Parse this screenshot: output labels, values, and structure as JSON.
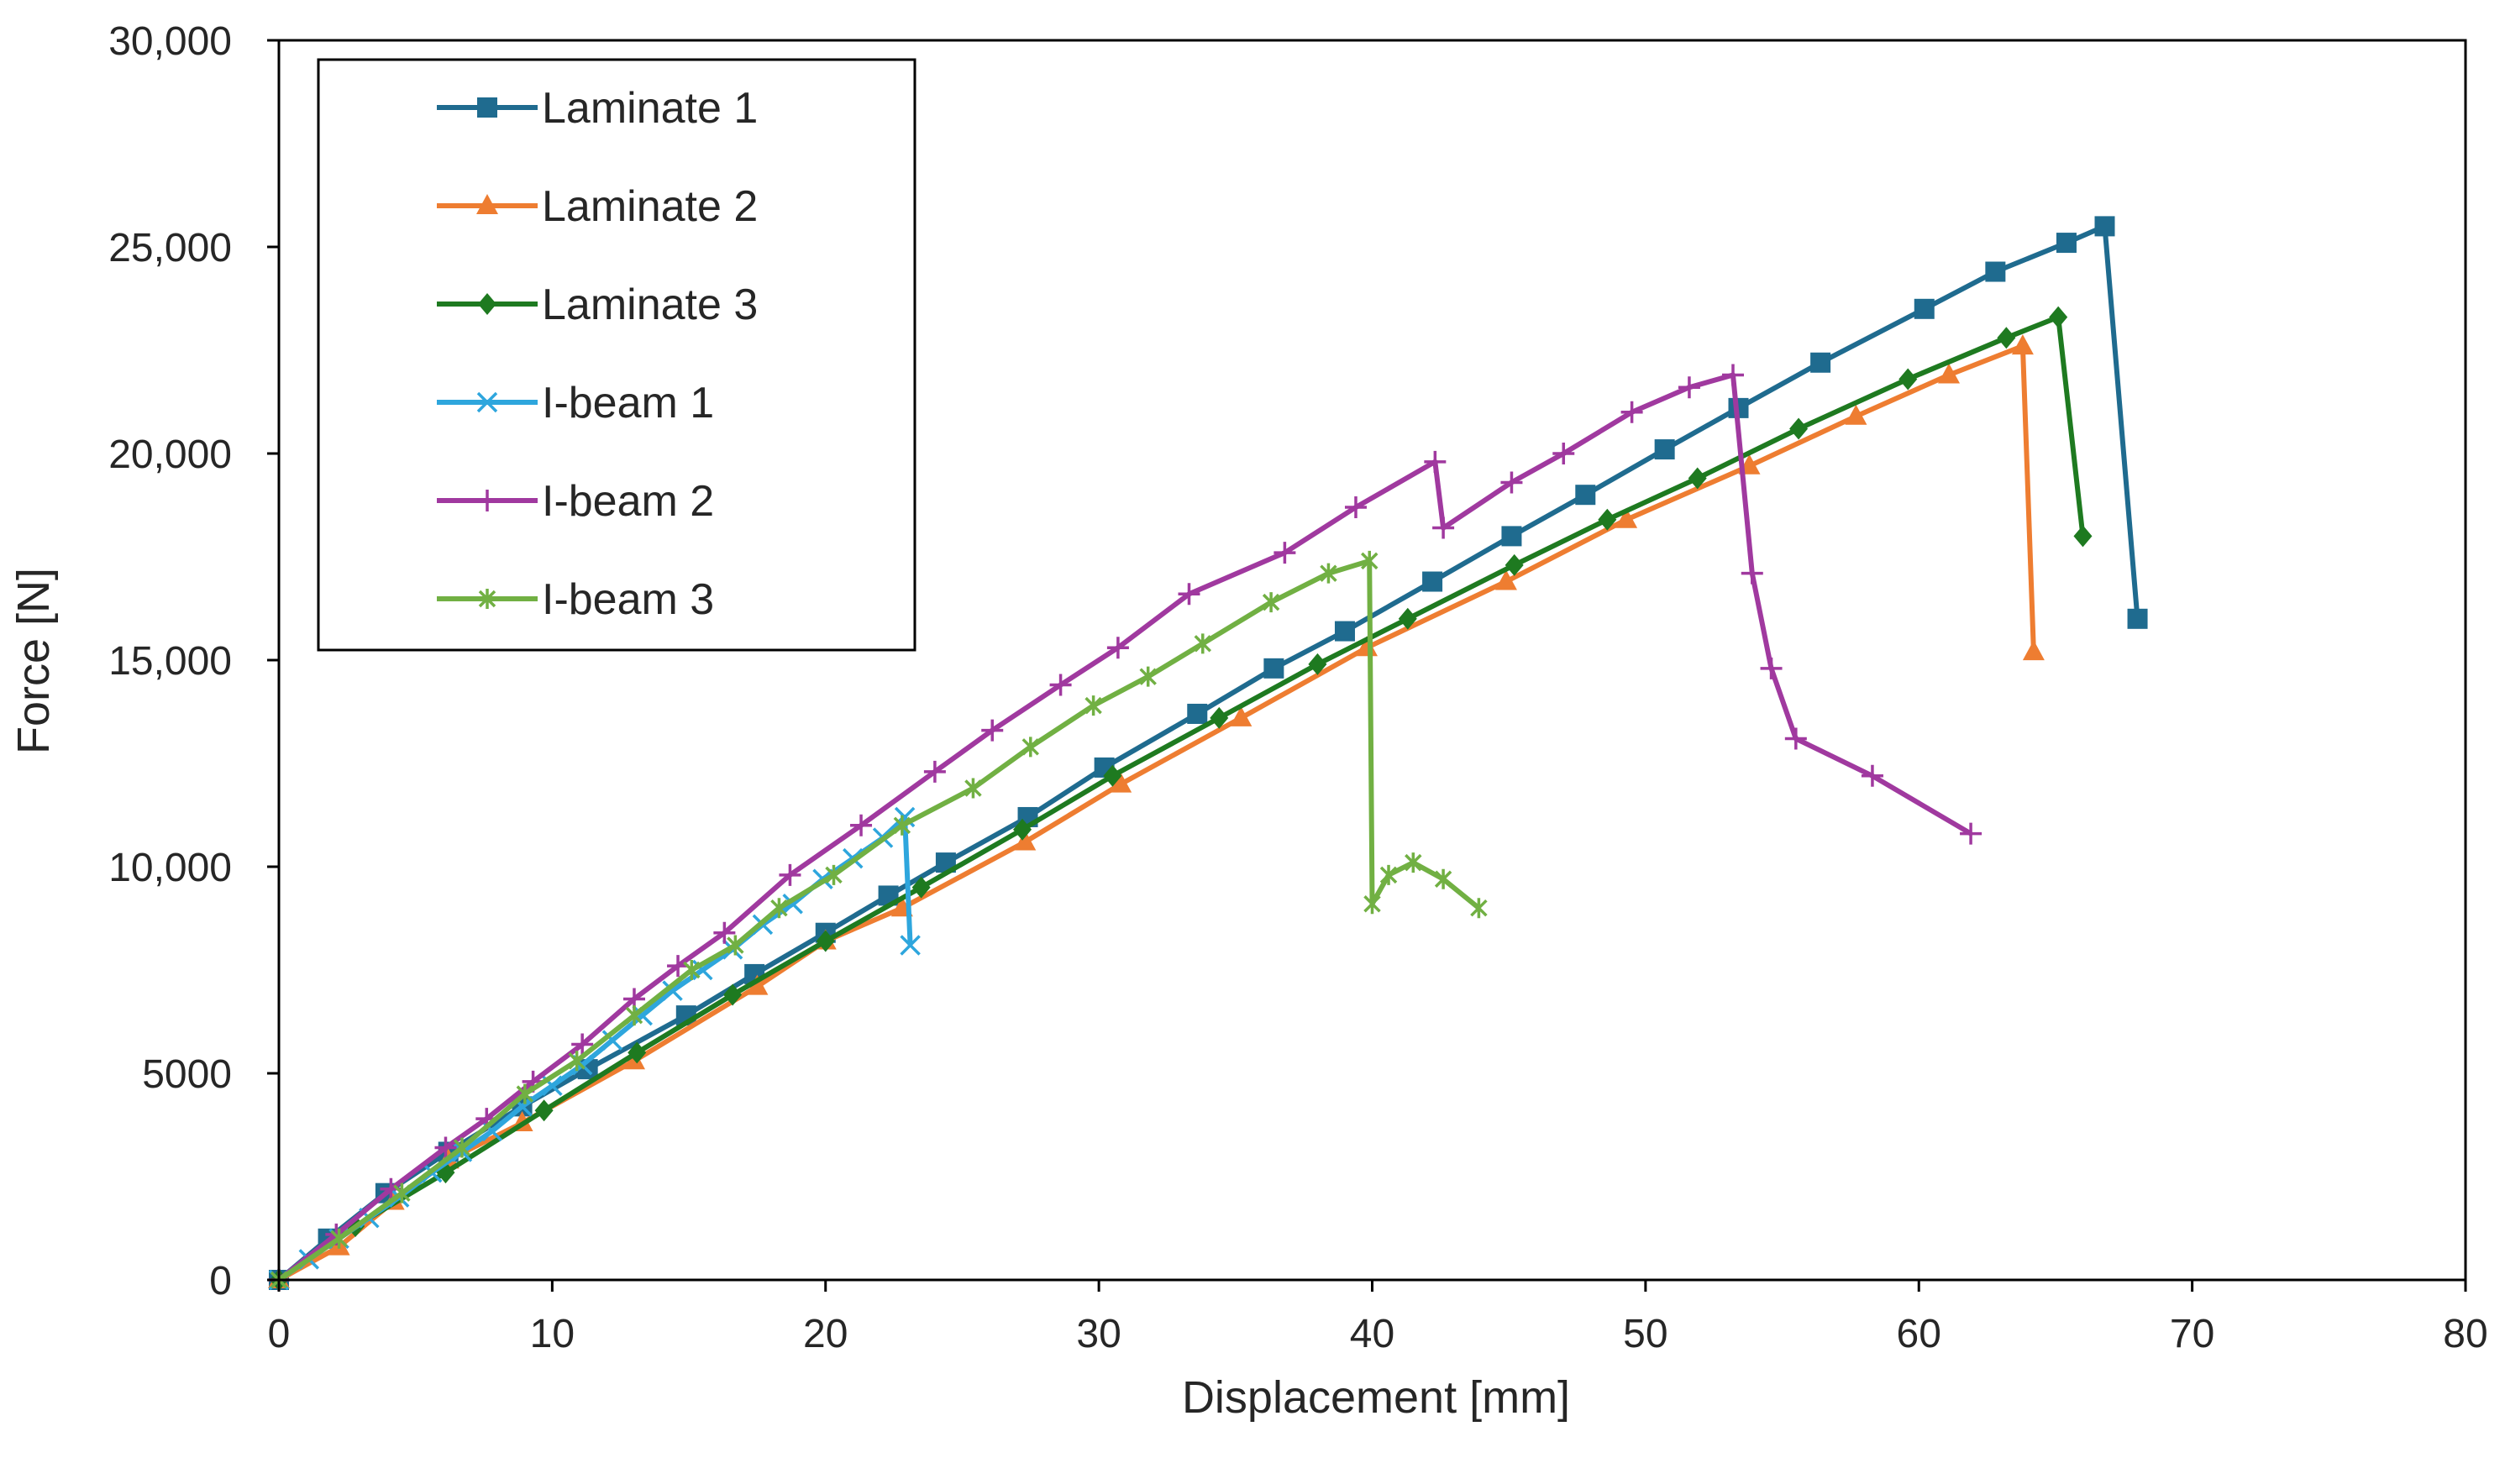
{
  "chart_data": {
    "type": "line",
    "title": "",
    "xlabel": "Displacement [mm]",
    "ylabel": "Force [N]",
    "xlim": [
      0,
      80
    ],
    "ylim": [
      0,
      30000
    ],
    "x_ticks": [
      0,
      10,
      20,
      30,
      40,
      50,
      60,
      70,
      80
    ],
    "x_tick_labels": [
      "0",
      "10",
      "20",
      "30",
      "40",
      "50",
      "60",
      "70",
      "80"
    ],
    "y_ticks": [
      0,
      5000,
      10000,
      15000,
      20000,
      25000,
      30000
    ],
    "y_tick_labels": [
      "0",
      "5000",
      "10,000",
      "15,000",
      "20,000",
      "25,000",
      "30,000"
    ],
    "grid": false,
    "legend_position": "top-left",
    "series": [
      {
        "name": "Laminate 1",
        "color": "#1f6b8f",
        "marker": "square",
        "points": [
          [
            0,
            0
          ],
          [
            1.8,
            1000
          ],
          [
            3.9,
            2100
          ],
          [
            6.2,
            3100
          ],
          [
            8.9,
            4200
          ],
          [
            11.3,
            5100
          ],
          [
            14.9,
            6400
          ],
          [
            17.4,
            7400
          ],
          [
            20.0,
            8400
          ],
          [
            22.3,
            9300
          ],
          [
            24.4,
            10100
          ],
          [
            27.4,
            11200
          ],
          [
            30.2,
            12400
          ],
          [
            33.6,
            13700
          ],
          [
            36.4,
            14800
          ],
          [
            39.0,
            15700
          ],
          [
            42.2,
            16900
          ],
          [
            45.1,
            18000
          ],
          [
            47.8,
            19000
          ],
          [
            50.7,
            20100
          ],
          [
            53.4,
            21100
          ],
          [
            56.4,
            22200
          ],
          [
            60.2,
            23500
          ],
          [
            62.8,
            24400
          ],
          [
            65.4,
            25100
          ],
          [
            66.8,
            25500
          ],
          [
            68.0,
            16000
          ]
        ]
      },
      {
        "name": "Laminate 2",
        "color": "#ee7d31",
        "marker": "triangle",
        "points": [
          [
            0,
            0
          ],
          [
            2.2,
            800
          ],
          [
            4.2,
            1900
          ],
          [
            6.2,
            2900
          ],
          [
            8.9,
            3800
          ],
          [
            13.0,
            5300
          ],
          [
            17.5,
            7100
          ],
          [
            20.0,
            8200
          ],
          [
            22.8,
            9000
          ],
          [
            27.3,
            10600
          ],
          [
            30.8,
            12000
          ],
          [
            35.2,
            13600
          ],
          [
            39.8,
            15300
          ],
          [
            44.9,
            16900
          ],
          [
            49.3,
            18400
          ],
          [
            53.8,
            19700
          ],
          [
            57.7,
            20900
          ],
          [
            61.1,
            21900
          ],
          [
            63.8,
            22600
          ],
          [
            64.2,
            15200
          ]
        ]
      },
      {
        "name": "Laminate 3",
        "color": "#1e7a20",
        "marker": "diamond",
        "points": [
          [
            0,
            0
          ],
          [
            2.8,
            1300
          ],
          [
            6.1,
            2600
          ],
          [
            9.7,
            4100
          ],
          [
            13.1,
            5500
          ],
          [
            16.6,
            6900
          ],
          [
            20.0,
            8200
          ],
          [
            23.5,
            9500
          ],
          [
            27.2,
            10900
          ],
          [
            30.5,
            12200
          ],
          [
            34.4,
            13600
          ],
          [
            38.0,
            14900
          ],
          [
            41.3,
            16000
          ],
          [
            45.2,
            17300
          ],
          [
            48.6,
            18400
          ],
          [
            51.9,
            19400
          ],
          [
            55.6,
            20600
          ],
          [
            59.6,
            21800
          ],
          [
            63.2,
            22800
          ],
          [
            65.1,
            23300
          ],
          [
            66.0,
            18000
          ]
        ]
      },
      {
        "name": "I-beam 1",
        "color": "#2ea6dd",
        "marker": "x",
        "points": [
          [
            0,
            0
          ],
          [
            1.1,
            500
          ],
          [
            2.2,
            1000
          ],
          [
            3.3,
            1500
          ],
          [
            4.4,
            2000
          ],
          [
            5.6,
            2600
          ],
          [
            6.7,
            3100
          ],
          [
            7.8,
            3600
          ],
          [
            8.9,
            4200
          ],
          [
            10.0,
            4700
          ],
          [
            11.1,
            5200
          ],
          [
            12.2,
            5800
          ],
          [
            13.3,
            6400
          ],
          [
            14.4,
            7000
          ],
          [
            15.5,
            7500
          ],
          [
            16.6,
            8000
          ],
          [
            17.7,
            8600
          ],
          [
            18.8,
            9100
          ],
          [
            19.9,
            9700
          ],
          [
            21.0,
            10200
          ],
          [
            22.1,
            10700
          ],
          [
            22.9,
            11200
          ],
          [
            23.1,
            8100
          ]
        ]
      },
      {
        "name": "I-beam 2",
        "color": "#a0399f",
        "marker": "plus",
        "points": [
          [
            0,
            0
          ],
          [
            2.1,
            1100
          ],
          [
            4.1,
            2200
          ],
          [
            6.1,
            3200
          ],
          [
            7.6,
            3900
          ],
          [
            9.3,
            4800
          ],
          [
            11.1,
            5700
          ],
          [
            13.0,
            6800
          ],
          [
            14.6,
            7600
          ],
          [
            16.3,
            8400
          ],
          [
            18.7,
            9800
          ],
          [
            21.3,
            11000
          ],
          [
            24.0,
            12300
          ],
          [
            26.1,
            13300
          ],
          [
            28.6,
            14400
          ],
          [
            30.7,
            15300
          ],
          [
            33.3,
            16600
          ],
          [
            36.8,
            17600
          ],
          [
            39.4,
            18700
          ],
          [
            42.3,
            19800
          ],
          [
            42.6,
            18200
          ],
          [
            45.1,
            19300
          ],
          [
            47.0,
            20000
          ],
          [
            49.5,
            21000
          ],
          [
            51.6,
            21600
          ],
          [
            53.2,
            21900
          ],
          [
            53.9,
            17100
          ],
          [
            54.6,
            14800
          ],
          [
            55.5,
            13100
          ],
          [
            58.3,
            12200
          ],
          [
            61.9,
            10800
          ]
        ]
      },
      {
        "name": "I-beam 3",
        "color": "#71b043",
        "marker": "star",
        "points": [
          [
            0,
            0
          ],
          [
            2.2,
            1000
          ],
          [
            4.5,
            2100
          ],
          [
            6.7,
            3200
          ],
          [
            9.0,
            4500
          ],
          [
            10.9,
            5300
          ],
          [
            13.0,
            6400
          ],
          [
            15.1,
            7500
          ],
          [
            16.7,
            8100
          ],
          [
            18.3,
            9000
          ],
          [
            20.3,
            9800
          ],
          [
            22.8,
            11000
          ],
          [
            25.4,
            11900
          ],
          [
            27.5,
            12900
          ],
          [
            29.8,
            13900
          ],
          [
            31.8,
            14600
          ],
          [
            33.8,
            15400
          ],
          [
            36.3,
            16400
          ],
          [
            38.4,
            17100
          ],
          [
            39.9,
            17400
          ],
          [
            40.0,
            9100
          ],
          [
            40.6,
            9800
          ],
          [
            41.5,
            10100
          ],
          [
            42.6,
            9700
          ],
          [
            43.9,
            9000
          ]
        ]
      }
    ]
  }
}
